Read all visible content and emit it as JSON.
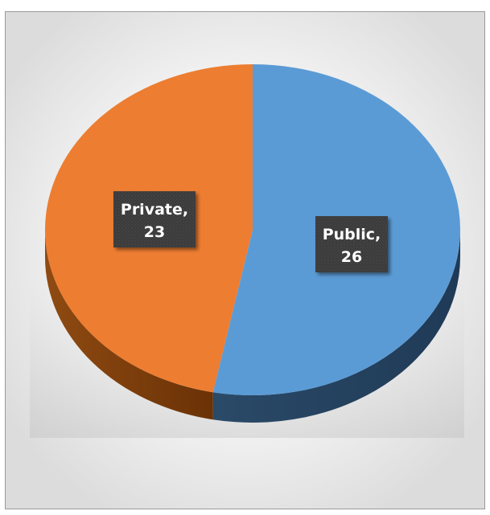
{
  "title": "",
  "chart_data": {
    "type": "pie",
    "title": "",
    "categories": [
      "Public",
      "Private"
    ],
    "values": [
      26,
      23
    ],
    "colors": [
      "#5B9BD5",
      "#ED7D31"
    ],
    "data_labels": [
      {
        "category": "Public",
        "separator": ",",
        "value": "26"
      },
      {
        "category": "Private",
        "separator": ",",
        "value": "23"
      }
    ],
    "legend": "none",
    "style": "3d-pie"
  }
}
